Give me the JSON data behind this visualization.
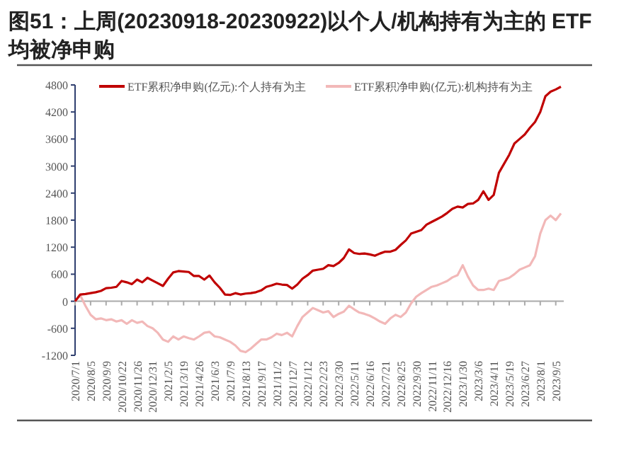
{
  "chart_data": {
    "type": "line",
    "title": "图51：上周(20230918-20230922)以个人/机构持有为主的 ETF 均被净申购",
    "categories": [
      "2020/7/1",
      null,
      null,
      "2020/8/5",
      null,
      null,
      "2020/9/9",
      null,
      null,
      "2020/10/22",
      null,
      null,
      "2020/11/26",
      null,
      null,
      "2020/12/31",
      null,
      null,
      "2021/2/5",
      null,
      null,
      "2021/3/19",
      null,
      null,
      "2021/4/26",
      null,
      null,
      "2021/6/3",
      null,
      null,
      "2021/7/9",
      null,
      null,
      "2021/8/13",
      null,
      null,
      "2021/9/17",
      null,
      null,
      "2021/11/2",
      null,
      null,
      "2021/12/7",
      null,
      null,
      "2022/1/12",
      null,
      null,
      "2022/2/23",
      null,
      null,
      "2022/3/30",
      null,
      null,
      "2022/5/11",
      null,
      null,
      "2022/6/16",
      null,
      null,
      "2022/7/21",
      null,
      null,
      "2022/8/25",
      null,
      null,
      "2022/9/30",
      null,
      null,
      "2022/11/11",
      null,
      null,
      "2022/12/16",
      null,
      null,
      "2023/1/30",
      null,
      null,
      "2023/3/6",
      null,
      null,
      "2023/4/11",
      null,
      null,
      "2023/5/19",
      null,
      null,
      "2023/6/27",
      null,
      null,
      "2023/8/1",
      null,
      null,
      "2023/9/5",
      null
    ],
    "series": [
      {
        "name": "ETF累积净申购(亿元):个人持有为主",
        "color": "#c00000",
        "values": [
          0,
          150,
          160,
          180,
          200,
          230,
          290,
          300,
          320,
          450,
          420,
          380,
          480,
          420,
          520,
          460,
          400,
          340,
          500,
          640,
          670,
          660,
          650,
          560,
          560,
          480,
          570,
          420,
          300,
          150,
          140,
          180,
          150,
          170,
          180,
          200,
          240,
          320,
          350,
          390,
          370,
          360,
          280,
          370,
          500,
          580,
          680,
          700,
          720,
          800,
          780,
          850,
          960,
          1150,
          1070,
          1050,
          1060,
          1040,
          1010,
          1060,
          1100,
          1100,
          1140,
          1250,
          1350,
          1500,
          1540,
          1580,
          1700,
          1760,
          1820,
          1880,
          1960,
          2050,
          2100,
          2080,
          2160,
          2170,
          2250,
          2440,
          2250,
          2360,
          2850,
          3050,
          3250,
          3500,
          3600,
          3700,
          3850,
          3980,
          4200,
          4550,
          4650,
          4700,
          4760
        ]
      },
      {
        "name": "ETF累积净申购(亿元):机构持有为主",
        "color": "#f2b8b8",
        "values": [
          0,
          130,
          -100,
          -300,
          -400,
          -380,
          -420,
          -400,
          -450,
          -420,
          -500,
          -420,
          -480,
          -450,
          -550,
          -600,
          -700,
          -850,
          -900,
          -780,
          -850,
          -780,
          -820,
          -850,
          -780,
          -700,
          -680,
          -780,
          -800,
          -850,
          -900,
          -980,
          -1100,
          -1130,
          -1050,
          -950,
          -850,
          -850,
          -800,
          -720,
          -750,
          -700,
          -780,
          -550,
          -350,
          -250,
          -150,
          -200,
          -250,
          -220,
          -350,
          -280,
          -230,
          -100,
          -180,
          -250,
          -280,
          -320,
          -380,
          -450,
          -500,
          -380,
          -300,
          -350,
          -250,
          -50,
          100,
          180,
          250,
          320,
          350,
          400,
          450,
          530,
          580,
          800,
          550,
          350,
          250,
          250,
          280,
          250,
          450,
          480,
          520,
          600,
          700,
          750,
          800,
          1000,
          1500,
          1800,
          1900,
          1800,
          1950
        ]
      }
    ],
    "ylim": [
      -1200,
      4800
    ],
    "yticks": [
      -1200,
      -600,
      0,
      600,
      1200,
      1800,
      2400,
      3000,
      3600,
      4200,
      4800
    ],
    "legend": "top"
  }
}
